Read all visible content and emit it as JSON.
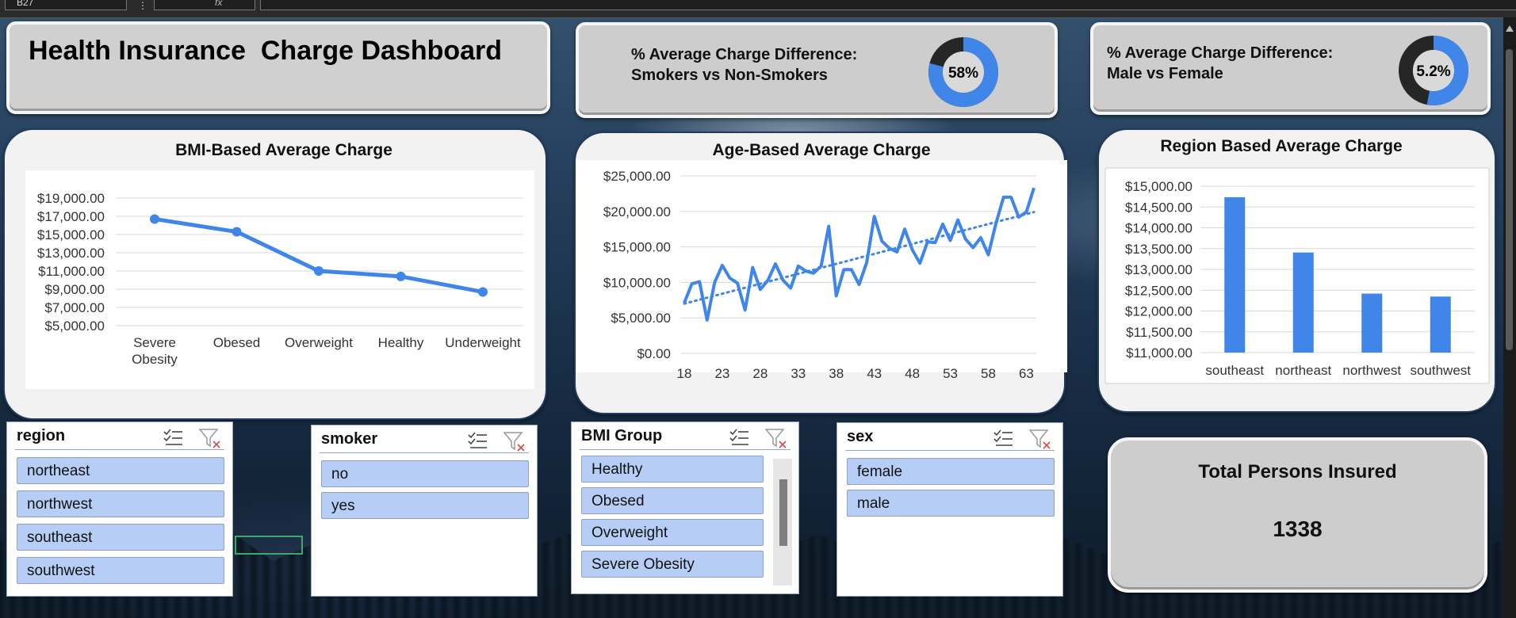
{
  "formula_bar": {
    "cell_ref": "B27",
    "fx": "fx"
  },
  "dashboard": {
    "title": "Health Insurance  Charge Dashboard"
  },
  "kpis": [
    {
      "label_line1": "% Average Charge Difference:",
      "label_line2": "Smokers vs Non-Smokers",
      "value_label": "58%",
      "fraction": 0.79
    },
    {
      "label_line1": "% Average Charge Difference:",
      "label_line2": "Male vs Female",
      "value_label": "5.2%",
      "fraction": 0.53
    }
  ],
  "total": {
    "label": "Total Persons Insured",
    "value": "1338"
  },
  "slicers": [
    {
      "title": "region",
      "items": [
        "northeast",
        "northwest",
        "southeast",
        "southwest"
      ]
    },
    {
      "title": "smoker",
      "items": [
        "no",
        "yes"
      ]
    },
    {
      "title": "BMI Group",
      "items": [
        "Healthy",
        "Obesed",
        "Overweight",
        "Severe Obesity"
      ]
    },
    {
      "title": "sex",
      "items": [
        "female",
        "male"
      ]
    }
  ],
  "colors": {
    "accent": "#3f86e8",
    "donut_dark": "#262626",
    "slicer_item": "#b6cdf6"
  },
  "chart_data": [
    {
      "type": "line",
      "title": "BMI-Based Average Charge",
      "categories": [
        "Severe Obesity",
        "Obesed",
        "Overweight",
        "Healthy",
        "Underweight"
      ],
      "category_labels": [
        [
          "Severe",
          "Obesity"
        ],
        [
          "Obesed"
        ],
        [
          "Overweight"
        ],
        [
          "Healthy"
        ],
        [
          "Underweight"
        ]
      ],
      "values": [
        16700,
        15300,
        11000,
        10400,
        8700
      ],
      "ylim": [
        5000,
        19000
      ],
      "yticks": [
        5000,
        7000,
        9000,
        11000,
        13000,
        15000,
        17000,
        19000
      ],
      "ytick_labels": [
        "$5,000.00",
        "$7,000.00",
        "$9,000.00",
        "$11,000.00",
        "$13,000.00",
        "$15,000.00",
        "$17,000.00",
        "$19,000.00"
      ],
      "markers": true,
      "grid": true
    },
    {
      "type": "line",
      "title": "Age-Based Average Charge",
      "x": [
        18,
        19,
        20,
        21,
        22,
        23,
        24,
        25,
        26,
        27,
        28,
        29,
        30,
        31,
        32,
        33,
        34,
        35,
        36,
        37,
        38,
        39,
        40,
        41,
        42,
        43,
        44,
        45,
        46,
        47,
        48,
        49,
        50,
        51,
        52,
        53,
        54,
        55,
        56,
        57,
        58,
        59,
        60,
        61,
        62,
        63,
        64
      ],
      "values": [
        7100,
        9800,
        10100,
        4700,
        10000,
        12400,
        10600,
        9900,
        6100,
        12100,
        9000,
        10300,
        12600,
        10300,
        9200,
        12300,
        11600,
        11300,
        12300,
        17900,
        8100,
        11800,
        11800,
        9700,
        12800,
        19300,
        15800,
        14800,
        14300,
        17500,
        14600,
        12700,
        15700,
        15600,
        18200,
        15900,
        18800,
        16100,
        14900,
        16300,
        13900,
        18300,
        22000,
        22000,
        19200,
        19900,
        23300
      ],
      "trendline": {
        "type": "linear",
        "start": 7000,
        "end": 19900
      },
      "xticks": [
        18,
        23,
        28,
        33,
        38,
        43,
        48,
        53,
        58,
        63
      ],
      "xtick_labels": [
        "18",
        "23",
        "28",
        "33",
        "38",
        "43",
        "48",
        "53",
        "58",
        "63"
      ],
      "ylim": [
        0,
        25000
      ],
      "yticks": [
        0,
        5000,
        10000,
        15000,
        20000,
        25000
      ],
      "ytick_labels": [
        "$0.00",
        "$5,000.00",
        "$10,000.00",
        "$15,000.00",
        "$20,000.00",
        "$25,000.00"
      ],
      "grid": true
    },
    {
      "type": "bar",
      "title": "Region Based Average Charge",
      "categories": [
        "southeast",
        "northeast",
        "northwest",
        "southwest"
      ],
      "values": [
        14735,
        13406,
        12418,
        12347
      ],
      "ylim": [
        11000,
        15000
      ],
      "yticks": [
        11000,
        11500,
        12000,
        12500,
        13000,
        13500,
        14000,
        14500,
        15000
      ],
      "ytick_labels": [
        "$11,000.00",
        "$11,500.00",
        "$12,000.00",
        "$12,500.00",
        "$13,000.00",
        "$13,500.00",
        "$14,000.00",
        "$14,500.00",
        "$15,000.00"
      ],
      "grid": true
    }
  ]
}
